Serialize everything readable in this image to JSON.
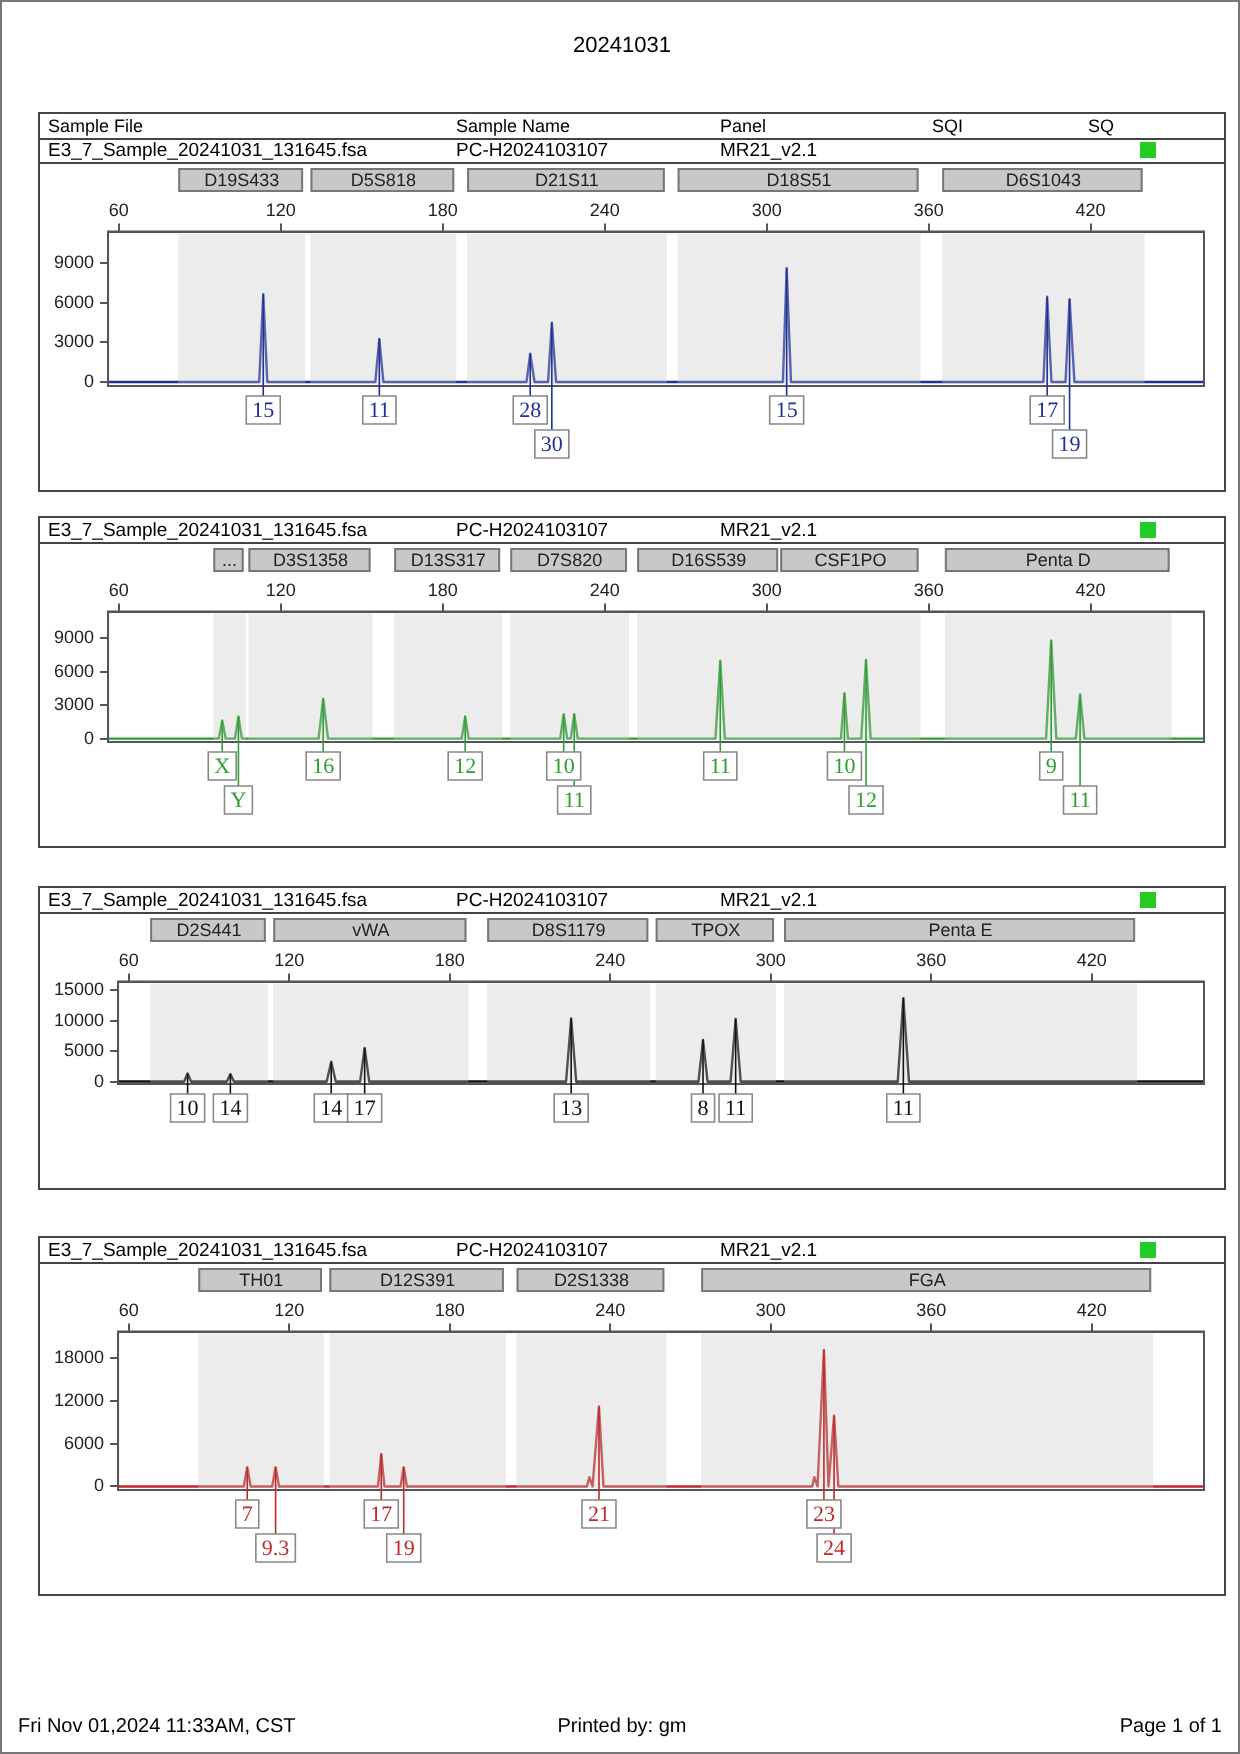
{
  "chart_data": [
    {
      "type": "line",
      "title": "20241031",
      "xlim": [
        56,
        462
      ],
      "xticks": [
        60,
        120,
        180,
        240,
        300,
        360,
        420
      ],
      "ylim": [
        -300,
        11400
      ],
      "yticks": [
        0,
        3000,
        6000,
        9000
      ],
      "series": [
        {
          "color": "#1f2f9c",
          "x": [
            56,
            111,
            112,
            113.5,
            115,
            155,
            156.5,
            158,
            211,
            212.4,
            214,
            219,
            220.4,
            222,
            306,
            307.4,
            309,
            402.5,
            403.9,
            405.5,
            410.7,
            412.2,
            414,
            462
          ],
          "values": [
            0,
            0,
            0,
            6650,
            0,
            0,
            3270,
            0,
            0,
            2150,
            0,
            0,
            4500,
            0,
            0,
            8620,
            0,
            0,
            6470,
            0,
            0,
            6280,
            0,
            0
          ]
        }
      ],
      "bands": [
        {
          "axis": "x",
          "from": 82,
          "to": 129,
          "label": "D19S433"
        },
        {
          "axis": "x",
          "from": 131,
          "to": 185,
          "label": "D5S818"
        },
        {
          "axis": "x",
          "from": 189,
          "to": 263,
          "label": "D21S11"
        },
        {
          "axis": "x",
          "from": 267,
          "to": 357,
          "label": "D18S51"
        },
        {
          "axis": "x",
          "from": 365,
          "to": 440,
          "label": "D6S1043"
        }
      ],
      "annotations": [
        "E3_7_Sample_20241031_131645.fsa",
        "PC-H2024103107",
        "MR21_v2.1",
        "Sample File",
        "Sample Name",
        "Panel",
        "SQI",
        "SQ",
        {
          "text": "15",
          "x": 113.5,
          "y": 6650
        },
        {
          "text": "11",
          "x": 156.5,
          "y": 3270
        },
        {
          "text": "28",
          "x": 212.4,
          "y": 2150
        },
        {
          "text": "30",
          "x": 220.4,
          "y": 4500
        },
        {
          "text": "15",
          "x": 307.4,
          "y": 8620
        },
        {
          "text": "17",
          "x": 403.9,
          "y": 6470
        },
        {
          "text": "19",
          "x": 412.2,
          "y": 6280
        }
      ]
    },
    {
      "type": "line",
      "xlim": [
        56,
        462
      ],
      "xticks": [
        60,
        120,
        180,
        240,
        300,
        360,
        420
      ],
      "ylim": [
        -300,
        11400
      ],
      "yticks": [
        0,
        3000,
        6000,
        9000
      ],
      "series": [
        {
          "color": "#2e9e34",
          "x": [
            56,
            97,
            98.3,
            99.6,
            103,
            104.3,
            105.6,
            134,
            135.7,
            137.5,
            187,
            188.3,
            189.6,
            223.5,
            224.8,
            226.1,
            227.4,
            228.7,
            230,
            281,
            282.8,
            284.5,
            327.5,
            328.8,
            330.1,
            335,
            336.8,
            338.5,
            403.5,
            405.4,
            407.3,
            414.5,
            416.1,
            417.7,
            462
          ],
          "values": [
            0,
            0,
            1640,
            0,
            0,
            2000,
            0,
            0,
            3590,
            0,
            0,
            2000,
            0,
            0,
            2190,
            0,
            0,
            2190,
            0,
            0,
            7000,
            0,
            0,
            4080,
            0,
            0,
            7060,
            0,
            0,
            8820,
            0,
            0,
            3960,
            0,
            0
          ]
        }
      ],
      "bands": [
        {
          "axis": "x",
          "from": 95,
          "to": 107,
          "label": "..."
        },
        {
          "axis": "x",
          "from": 108,
          "to": 154,
          "label": "D3S1358"
        },
        {
          "axis": "x",
          "from": 162,
          "to": 202,
          "label": "D13S317"
        },
        {
          "axis": "x",
          "from": 205,
          "to": 249,
          "label": "D7S820"
        },
        {
          "axis": "x",
          "from": 252,
          "to": 305,
          "label": "D16S539"
        },
        {
          "axis": "x",
          "from": 305,
          "to": 357,
          "label": "CSF1PO"
        },
        {
          "axis": "x",
          "from": 366,
          "to": 450,
          "label": "Penta D"
        }
      ],
      "annotations": [
        "E3_7_Sample_20241031_131645.fsa",
        "PC-H2024103107",
        "MR21_v2.1",
        {
          "text": "X",
          "x": 98.3,
          "y": 1640
        },
        {
          "text": "Y",
          "x": 104.3,
          "y": 2000
        },
        {
          "text": "16",
          "x": 135.7,
          "y": 3590
        },
        {
          "text": "12",
          "x": 188.3,
          "y": 2000
        },
        {
          "text": "10",
          "x": 224.8,
          "y": 2190
        },
        {
          "text": "11",
          "x": 228.7,
          "y": 2190
        },
        {
          "text": "11",
          "x": 282.8,
          "y": 7000
        },
        {
          "text": "10",
          "x": 328.8,
          "y": 4080
        },
        {
          "text": "12",
          "x": 336.8,
          "y": 7060
        },
        {
          "text": "9",
          "x": 405.4,
          "y": 8820
        },
        {
          "text": "11",
          "x": 416.1,
          "y": 3960
        }
      ]
    },
    {
      "type": "line",
      "xlim": [
        56,
        462
      ],
      "xticks": [
        60,
        120,
        180,
        240,
        300,
        360,
        420
      ],
      "ylim": [
        -400,
        16400
      ],
      "yticks": [
        0,
        5000,
        10000,
        15000
      ],
      "series": [
        {
          "color": "#111111",
          "x": [
            56,
            80.7,
            82,
            83.3,
            96.7,
            98,
            99.3,
            134,
            135.7,
            137.4,
            146.5,
            148.2,
            149.9,
            223.5,
            225.4,
            227.3,
            273,
            274.7,
            276.4,
            285,
            286.9,
            288.8,
            347.5,
            349.6,
            351.7,
            462
          ],
          "values": [
            0,
            0,
            1320,
            0,
            0,
            1230,
            0,
            0,
            3250,
            0,
            0,
            5530,
            0,
            0,
            10350,
            0,
            0,
            6840,
            0,
            0,
            10260,
            0,
            0,
            13680,
            0,
            0
          ]
        }
      ],
      "bands": [
        {
          "axis": "x",
          "from": 68,
          "to": 112,
          "label": "D2S441"
        },
        {
          "axis": "x",
          "from": 114,
          "to": 187,
          "label": "vWA"
        },
        {
          "axis": "x",
          "from": 194,
          "to": 255,
          "label": "D8S1179"
        },
        {
          "axis": "x",
          "from": 257,
          "to": 302,
          "label": "TPOX"
        },
        {
          "axis": "x",
          "from": 305,
          "to": 437,
          "label": "Penta E"
        }
      ],
      "annotations": [
        "E3_7_Sample_20241031_131645.fsa",
        "PC-H2024103107",
        "MR21_v2.1",
        {
          "text": "10",
          "x": 82,
          "y": 1320
        },
        {
          "text": "14",
          "x": 98,
          "y": 1230
        },
        {
          "text": "14",
          "x": 135.7,
          "y": 3250
        },
        {
          "text": "17",
          "x": 148.2,
          "y": 5530
        },
        {
          "text": "13",
          "x": 225.4,
          "y": 10350
        },
        {
          "text": "8",
          "x": 274.7,
          "y": 6840
        },
        {
          "text": "11",
          "x": 286.9,
          "y": 10260
        },
        {
          "text": "11",
          "x": 349.6,
          "y": 13680
        }
      ]
    },
    {
      "type": "line",
      "xlim": [
        56,
        462
      ],
      "xticks": [
        60,
        120,
        180,
        240,
        300,
        360,
        420
      ],
      "ylim": [
        -500,
        21750
      ],
      "yticks": [
        0,
        6000,
        12000,
        18000
      ],
      "series": [
        {
          "color": "#c0282b",
          "x": [
            56,
            103,
            104.3,
            105.6,
            113.6,
            114.9,
            116.2,
            153.2,
            154.4,
            155.6,
            161.6,
            162.8,
            164,
            231.3,
            232.2,
            233.4,
            235.8,
            237.5,
            315.5,
            316.3,
            317.5,
            319.9,
            321.6,
            323.7,
            325.3,
            462
          ],
          "values": [
            0,
            0,
            2690,
            0,
            0,
            2690,
            0,
            0,
            4560,
            0,
            0,
            2690,
            0,
            0,
            1300,
            0,
            11230,
            0,
            0,
            1300,
            0,
            19180,
            0,
            9940,
            0,
            0
          ]
        }
      ],
      "bands": [
        {
          "axis": "x",
          "from": 86,
          "to": 133,
          "label": "TH01"
        },
        {
          "axis": "x",
          "from": 135,
          "to": 201,
          "label": "D12S391"
        },
        {
          "axis": "x",
          "from": 205,
          "to": 261,
          "label": "D2S1338"
        },
        {
          "axis": "x",
          "from": 274,
          "to": 443,
          "label": "FGA"
        }
      ],
      "annotations": [
        "E3_7_Sample_20241031_131645.fsa",
        "PC-H2024103107",
        "MR21_v2.1",
        "Fri Nov 01,2024 11:33AM, CST",
        "Printed by: gm",
        "Page 1 of 1",
        {
          "text": "7",
          "x": 104.3,
          "y": 2690
        },
        {
          "text": "9.3",
          "x": 114.9,
          "y": 2690
        },
        {
          "text": "17",
          "x": 154.4,
          "y": 4560
        },
        {
          "text": "19",
          "x": 162.8,
          "y": 2690
        },
        {
          "text": "21",
          "x": 235.8,
          "y": 11230
        },
        {
          "text": "23",
          "x": 319.9,
          "y": 19180
        },
        {
          "text": "24",
          "x": 323.7,
          "y": 9940
        }
      ]
    }
  ]
}
